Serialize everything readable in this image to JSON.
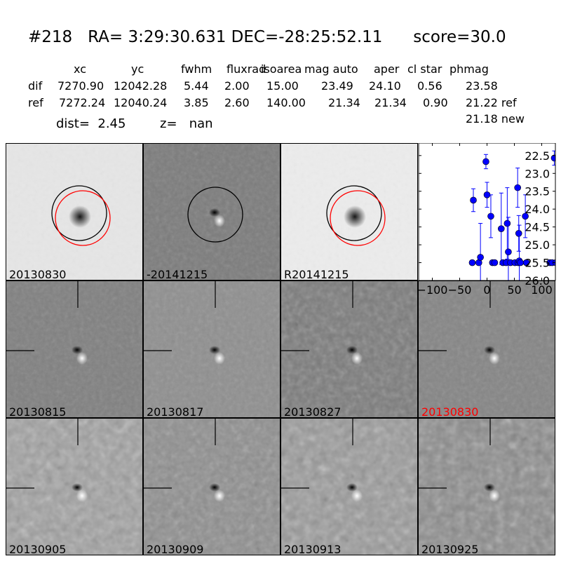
{
  "header": {
    "id": "#218",
    "ra": "RA= 3:29:30.631",
    "dec": "DEC=-28:25:52.11",
    "score": "score=30.0"
  },
  "table": {
    "columns": [
      "xc",
      "yc",
      "fwhm",
      "fluxrad",
      "isoarea",
      "mag auto",
      "aper",
      "cl star",
      "phmag"
    ],
    "rows": [
      {
        "label": "dif",
        "values": [
          "7270.90",
          "12042.28",
          "5.44",
          "2.00",
          "15.00",
          "23.49",
          "24.10",
          "0.56",
          "23.58"
        ]
      },
      {
        "label": "ref",
        "values": [
          "7272.24",
          "12040.24",
          "3.85",
          "2.60",
          "140.00",
          "21.34",
          "21.34",
          "0.90",
          "21.22 ref"
        ]
      }
    ],
    "extra_phmag": "21.18 new",
    "dist": "dist=  2.45",
    "z": "z=   nan"
  },
  "panels": [
    {
      "label": "20130830",
      "label_color": "#000000",
      "bg": "#e6e6e6",
      "kind": "ref"
    },
    {
      "label": "-20141215",
      "label_color": "#000000",
      "bg": "#7c7c7c",
      "kind": "diff_circle"
    },
    {
      "label": "R20141215",
      "label_color": "#000000",
      "bg": "#ececec",
      "kind": "ref"
    },
    {
      "label": "20130815",
      "label_color": "#000000",
      "bg": "#808080",
      "kind": "diff"
    },
    {
      "label": "20130817",
      "label_color": "#000000",
      "bg": "#8f8f8f",
      "kind": "diff"
    },
    {
      "label": "20130827",
      "label_color": "#000000",
      "bg": "#7a7a7a",
      "kind": "diff_noisy"
    },
    {
      "label": "20130830",
      "label_color": "#ff0000",
      "bg": "#858585",
      "kind": "diff"
    },
    {
      "label": "20130905",
      "label_color": "#000000",
      "bg": "#a0a0a0",
      "kind": "noise"
    },
    {
      "label": "20130909",
      "label_color": "#000000",
      "bg": "#8e8e8e",
      "kind": "diff_noisy"
    },
    {
      "label": "20130913",
      "label_color": "#000000",
      "bg": "#999999",
      "kind": "noise"
    },
    {
      "label": "20130925",
      "label_color": "#000000",
      "bg": "#8a8a8a",
      "kind": "noise"
    }
  ],
  "chart_data": {
    "type": "scatter",
    "xlim": [
      -125,
      125
    ],
    "ylim": [
      22.15,
      26.0
    ],
    "y_inverted": true,
    "xticks": [
      -100,
      -50,
      0,
      50,
      100
    ],
    "yticks": [
      22.5,
      23.0,
      23.5,
      24.0,
      24.5,
      25.0,
      25.5,
      26.0
    ],
    "xtick_labels": [
      "−100",
      "−50",
      "0",
      "50",
      "100"
    ],
    "ytick_labels": [
      "22.5",
      "23.0",
      "23.5",
      "24.0",
      "24.5",
      "25.0",
      "25.5",
      "26.0"
    ],
    "color": "#0000ff",
    "points": [
      {
        "x": -27,
        "y": 25.5,
        "err": 0.05
      },
      {
        "x": -25,
        "y": 23.75,
        "err": 0.32
      },
      {
        "x": -15,
        "y": 25.5,
        "err": 0.05
      },
      {
        "x": -12,
        "y": 25.35,
        "err": 0.95
      },
      {
        "x": -2,
        "y": 22.67,
        "err": 0.2
      },
      {
        "x": 0,
        "y": 23.6,
        "err": 0.35
      },
      {
        "x": 7,
        "y": 24.2,
        "err": 0.6
      },
      {
        "x": 10,
        "y": 25.5,
        "err": 0.05
      },
      {
        "x": 14,
        "y": 25.5,
        "err": 0.05
      },
      {
        "x": 26,
        "y": 24.55,
        "err": 1.0
      },
      {
        "x": 29,
        "y": 25.5,
        "err": 0.05
      },
      {
        "x": 35,
        "y": 25.5,
        "err": 0.05
      },
      {
        "x": 37,
        "y": 24.4,
        "err": 1.0
      },
      {
        "x": 39,
        "y": 25.2,
        "err": 0.97
      },
      {
        "x": 43,
        "y": 25.5,
        "err": 0.05
      },
      {
        "x": 51,
        "y": 25.5,
        "err": 0.05
      },
      {
        "x": 56,
        "y": 23.4,
        "err": 0.55
      },
      {
        "x": 57,
        "y": 25.5,
        "err": 0.05
      },
      {
        "x": 58,
        "y": 24.68,
        "err": 0.5
      },
      {
        "x": 59,
        "y": 25.45,
        "err": 1.0
      },
      {
        "x": 61,
        "y": 25.5,
        "err": 0.05
      },
      {
        "x": 70,
        "y": 24.2,
        "err": 0.6
      },
      {
        "x": 72,
        "y": 25.5,
        "err": 0.05
      },
      {
        "x": 115,
        "y": 25.5,
        "err": 0.05
      },
      {
        "x": 119,
        "y": 25.5,
        "err": 0.05
      },
      {
        "x": 123,
        "y": 22.57,
        "err": 0.2
      },
      {
        "x": 126,
        "y": 25.5,
        "err": 0.05
      }
    ]
  }
}
